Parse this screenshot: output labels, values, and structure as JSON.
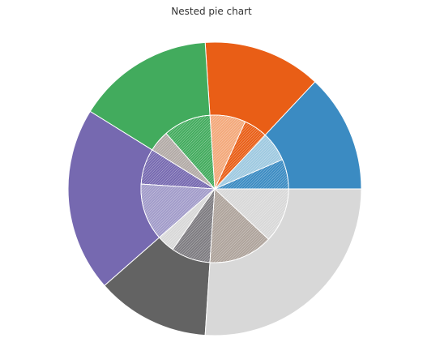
{
  "chart_data": {
    "type": "pie",
    "title": "Nested pie chart",
    "outer": {
      "colors": [
        "#3b8bc2",
        "#e95e16",
        "#42ab5d",
        "#7669b0",
        "#636363",
        "#d8d8d8"
      ],
      "values": [
        50,
        50,
        58,
        78,
        48,
        100
      ]
    },
    "inner": {
      "colors": [
        "#3b8bc2",
        "#9ec9e0",
        "#e95e16",
        "#f3a87a",
        "#42ab5d",
        "#b2aaa6",
        "#7669b0",
        "#a19bc9",
        "#d8d8d8",
        "#7d7b80",
        "#aea39b",
        "#d8d8d8"
      ],
      "values": [
        25,
        25,
        20,
        30,
        40,
        18,
        30,
        48,
        15,
        33,
        54,
        46
      ]
    }
  }
}
